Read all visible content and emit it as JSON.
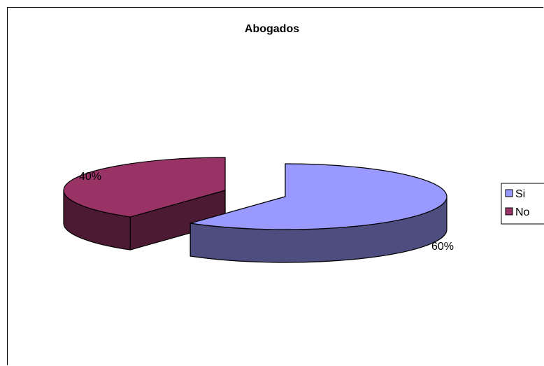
{
  "chart_data": {
    "type": "pie",
    "title": "Abogados",
    "categories": [
      "Si",
      "No"
    ],
    "values": [
      60,
      40
    ],
    "data_labels": [
      "60%",
      "40%"
    ],
    "colors": [
      "#9999ff",
      "#993366"
    ],
    "side_colors": [
      "#4d4d80",
      "#4d1a33"
    ],
    "legend": {
      "position": "right",
      "entries": [
        {
          "label": "Si",
          "color": "#9999ff"
        },
        {
          "label": "No",
          "color": "#993366"
        }
      ]
    },
    "style": "3d-exploded"
  }
}
